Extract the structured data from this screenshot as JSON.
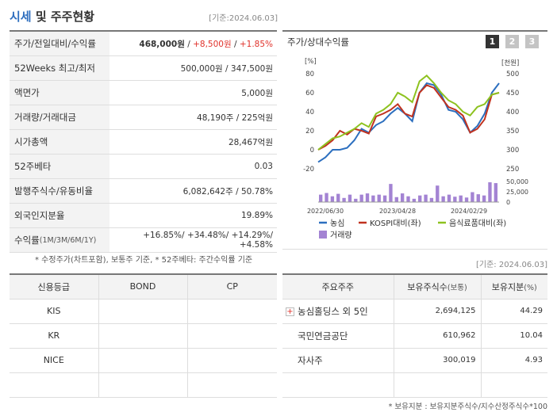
{
  "header": {
    "title_main": "시세",
    "title_rest": " 및 주주현황",
    "base_date": "[기준:2024.06.03]"
  },
  "market": {
    "rows": [
      {
        "label": "주가/전일대비/수익률",
        "price": "468,000원",
        "sep1": " / ",
        "change": "+8,500원",
        "sep2": " / ",
        "rate": "+1.85%"
      },
      {
        "label": "52Weeks 최고/최저",
        "value": "500,000원 / 347,500원"
      },
      {
        "label": "액면가",
        "value": "5,000원"
      },
      {
        "label": "거래량/거래대금",
        "value": "48,190주 / 225억원"
      },
      {
        "label": "시가총액",
        "value": "28,467억원"
      },
      {
        "label": "52주베타",
        "value": "0.03"
      },
      {
        "label": "발행주식수/유동비율",
        "value": "6,082,642주 / 50.78%"
      },
      {
        "label": "외국인지분율",
        "value": "19.89%"
      },
      {
        "label": "수익률",
        "sublabel": " (1M/3M/6M/1Y)",
        "value": "+16.85%/ +34.48%/ +14.29%/ +4.58%"
      }
    ],
    "note": "* 수정주가(차트포함), 보통주 기준, * 52주베타: 주간수익률 기준"
  },
  "chart_panel": {
    "title": "주가/상대수익률",
    "period_buttons": [
      "1",
      "2",
      "3"
    ],
    "active_period": "1"
  },
  "chart_data": {
    "type": "line",
    "left_axis_label": "[%]",
    "right_axis_label": "[천원]",
    "left_ticks": [
      "80",
      "60",
      "40",
      "20",
      "0",
      "-20"
    ],
    "right_ticks": [
      "500",
      "450",
      "400",
      "350",
      "300",
      "250"
    ],
    "volume_ticks": [
      "50,000",
      "25,000",
      "0"
    ],
    "x_labels": [
      "2022/06/30",
      "2023/04/28",
      "2024/02/29"
    ],
    "ylim_left": [
      -20,
      80
    ],
    "ylim_right": [
      250,
      500
    ],
    "volume_max": 50000,
    "series": [
      {
        "name": "농심",
        "color": "#2c6fbf",
        "values": [
          -13,
          -8,
          0,
          0,
          2,
          10,
          22,
          18,
          26,
          30,
          38,
          44,
          38,
          30,
          60,
          70,
          68,
          58,
          42,
          40,
          32,
          18,
          25,
          38,
          60,
          70
        ]
      },
      {
        "name": "KOSPI대비(좌)",
        "color": "#c0321f",
        "values": [
          0,
          4,
          10,
          20,
          16,
          22,
          20,
          17,
          35,
          38,
          42,
          48,
          38,
          35,
          60,
          68,
          65,
          55,
          45,
          42,
          36,
          18,
          22,
          32,
          58,
          60
        ]
      },
      {
        "name": "음식료품대비(좌)",
        "color": "#8dc21f",
        "values": [
          0,
          6,
          12,
          14,
          18,
          22,
          28,
          24,
          38,
          42,
          48,
          60,
          56,
          50,
          72,
          78,
          70,
          60,
          52,
          48,
          40,
          36,
          45,
          48,
          58,
          60
        ]
      }
    ],
    "volume": {
      "name": "거래량",
      "color": "#a383d3",
      "values": [
        18000,
        22000,
        14000,
        20000,
        10000,
        18000,
        8000,
        18000,
        21000,
        16000,
        18000,
        16000,
        44000,
        12000,
        21000,
        14000,
        8000,
        16000,
        18000,
        10000,
        40000,
        14000,
        18000,
        13000,
        16000,
        11000,
        24000,
        19000,
        16000,
        48000,
        46000
      ]
    }
  },
  "base_date2": "[기준: 2024.06.03]",
  "credit": {
    "headers": [
      "신용등급",
      "BOND",
      "CP"
    ],
    "rows": [
      [
        "KIS",
        "",
        ""
      ],
      [
        "KR",
        "",
        ""
      ],
      [
        "NICE",
        "",
        ""
      ],
      [
        "",
        "",
        ""
      ]
    ]
  },
  "holders": {
    "headers": [
      "주요주주",
      "보유주식수",
      "(보통)",
      "보유지분",
      "(%)"
    ],
    "rows": [
      {
        "name": "농심홀딩스 외 5인",
        "expand": true,
        "shares": "2,694,125",
        "pct": "44.29"
      },
      {
        "name": "국민연금공단",
        "expand": false,
        "shares": "610,962",
        "pct": "10.04"
      },
      {
        "name": "자사주",
        "expand": false,
        "shares": "300,019",
        "pct": "4.93"
      },
      {
        "name": "",
        "expand": false,
        "shares": "",
        "pct": ""
      }
    ],
    "note": "* 보유지분 : 보유지분주식수/지수산정주식수*100"
  }
}
